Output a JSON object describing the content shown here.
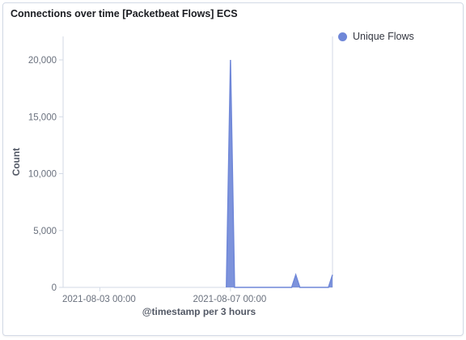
{
  "panel": {
    "title": "Connections over time [Packetbeat Flows] ECS"
  },
  "legend": {
    "items": [
      {
        "label": "Unique Flows",
        "color": "#6f87d8"
      }
    ]
  },
  "chart_data": {
    "type": "area",
    "title": "Connections over time [Packetbeat Flows] ECS",
    "xlabel": "@timestamp per 3 hours",
    "ylabel": "Count",
    "ylim": [
      0,
      22000
    ],
    "yticks": [
      0,
      5000,
      10000,
      15000,
      20000
    ],
    "ytick_labels": [
      "0",
      "5,000",
      "10,000",
      "15,000",
      "20,000"
    ],
    "xtick_labels": [
      "2021-08-03 00:00",
      "2021-08-07 00:00"
    ],
    "xlim": [
      "2021-08-01 21:00",
      "2021-08-10 03:00"
    ],
    "legend_position": "right",
    "grid": false,
    "series": [
      {
        "name": "Unique Flows",
        "color": "#6f87d8",
        "points": [
          [
            "2021-08-06 21:00",
            0
          ],
          [
            "2021-08-07 00:00",
            20000
          ],
          [
            "2021-08-07 03:00",
            0
          ],
          [
            "2021-08-08 21:00",
            0
          ],
          [
            "2021-08-09 00:00",
            1100
          ],
          [
            "2021-08-09 03:00",
            0
          ],
          [
            "2021-08-10 00:00",
            0
          ],
          [
            "2021-08-10 03:00",
            1100
          ]
        ]
      }
    ]
  }
}
